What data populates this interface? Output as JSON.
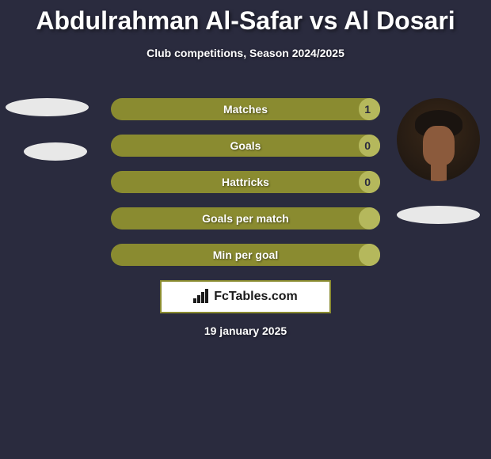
{
  "title": "Abdulrahman Al-Safar vs Al Dosari",
  "subtitle": "Club competitions, Season 2024/2025",
  "brand": "FcTables.com",
  "date": "19 january 2025",
  "bars": [
    {
      "label": "Matches",
      "valueRight": "1",
      "fillRightPct": 8
    },
    {
      "label": "Goals",
      "valueRight": "0",
      "fillRightPct": 8
    },
    {
      "label": "Hattricks",
      "valueRight": "0",
      "fillRightPct": 8
    },
    {
      "label": "Goals per match",
      "valueRight": "",
      "fillRightPct": 8
    },
    {
      "label": "Min per goal",
      "valueRight": "",
      "fillRightPct": 8
    }
  ],
  "colors": {
    "background": "#2a2b3e",
    "barBg": "#8a8b30",
    "barFill": "#b5b85c",
    "text": "#ffffff",
    "pill": "#e8e8e8"
  }
}
